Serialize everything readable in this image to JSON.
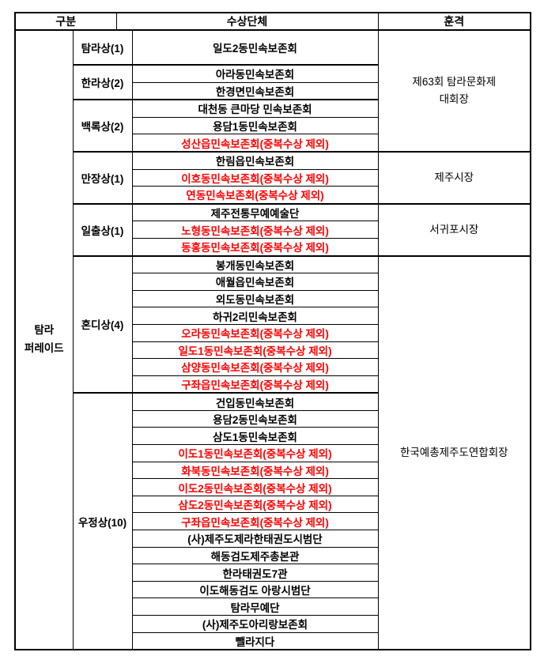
{
  "colors": {
    "text": "#000000",
    "excluded_red": "#ff0000",
    "border": "#000000",
    "background": "#ffffff"
  },
  "header": {
    "category": "구분",
    "organization": "수상단체",
    "honor": "훈격"
  },
  "category": {
    "lines": [
      "탐라",
      "퍼레이드"
    ]
  },
  "groups": [
    {
      "award": "탐라상(1)",
      "orgs": [
        {
          "text": "일도2동민속보존회",
          "red": false
        }
      ]
    },
    {
      "award": "한라상(2)",
      "orgs": [
        {
          "text": "아라동민속보존회",
          "red": false
        },
        {
          "text": "한경면민속보존회",
          "red": false
        }
      ]
    },
    {
      "award": "백록상(2)",
      "orgs": [
        {
          "text": "대천동 큰마당 민속보존회",
          "red": false
        },
        {
          "text": "용담1동민속보존회",
          "red": false
        },
        {
          "text": "성산읍민속보존회(중복수상 제외)",
          "red": true
        }
      ]
    },
    {
      "award": "만장상(1)",
      "orgs": [
        {
          "text": "한림읍민속보존회",
          "red": false
        },
        {
          "text": "이호동민속보존회(중복수상 제외)",
          "red": true
        },
        {
          "text": "연동민속보존회(중복수상 제외)",
          "red": true
        }
      ]
    },
    {
      "award": "일출상(1)",
      "orgs": [
        {
          "text": "제주전통무예예술단",
          "red": false
        },
        {
          "text": "노형동민속보존회(중복수상 제외)",
          "red": true
        },
        {
          "text": "동홍동민속보존회(중복수상 제외)",
          "red": true
        }
      ]
    },
    {
      "award": "혼디상(4)",
      "orgs": [
        {
          "text": "봉개동민속보존회",
          "red": false
        },
        {
          "text": "애월읍민속보존회",
          "red": false
        },
        {
          "text": "외도동민속보존회",
          "red": false
        },
        {
          "text": "하귀2리민속보존회",
          "red": false
        },
        {
          "text": "오라동민속보존회(중복수상 제외)",
          "red": true
        },
        {
          "text": "일도1동민속보존회(중복수상 제외)",
          "red": true
        },
        {
          "text": "삼양동민속보존회(중복수상 제외)",
          "red": true
        },
        {
          "text": "구좌읍민속보존회(중복수상 제외)",
          "red": true
        }
      ]
    },
    {
      "award": "우정상(10)",
      "orgs": [
        {
          "text": "건입동민속보존회",
          "red": false
        },
        {
          "text": "용담2동민속보존회",
          "red": false
        },
        {
          "text": "삼도1동민속보존회",
          "red": false
        },
        {
          "text": "이도1동민속보존회(중복수상 제외)",
          "red": true
        },
        {
          "text": "화북동민속보존회(중복수상 제외)",
          "red": true
        },
        {
          "text": "이도2동민속보존회(중복수상 제외)",
          "red": true
        },
        {
          "text": "삼도2동민속보존회(중복수상 제외)",
          "red": true
        },
        {
          "text": "구좌읍민속보존회(중복수상 제외)",
          "red": true
        },
        {
          "text": "(사)제주도제라한태권도시범단",
          "red": false
        },
        {
          "text": "해동검도제주총본관",
          "red": false
        },
        {
          "text": "한라태권도7관",
          "red": false
        },
        {
          "text": "이도해동검도 아랑시범단",
          "red": false
        },
        {
          "text": "탐라무예단",
          "red": false
        },
        {
          "text": "(사)제주도아리랑보존회",
          "red": false
        },
        {
          "text": "뺄라지다",
          "red": false
        }
      ]
    }
  ],
  "honors": [
    {
      "lines": [
        "제63회 탐라문화제",
        "대회장"
      ],
      "rows": 6
    },
    {
      "lines": [
        "제주시장"
      ],
      "rows": 3
    },
    {
      "lines": [
        "서귀포시장"
      ],
      "rows": 3
    },
    {
      "lines": [
        "한국예총제주도연합회장"
      ],
      "rows": 23
    }
  ]
}
